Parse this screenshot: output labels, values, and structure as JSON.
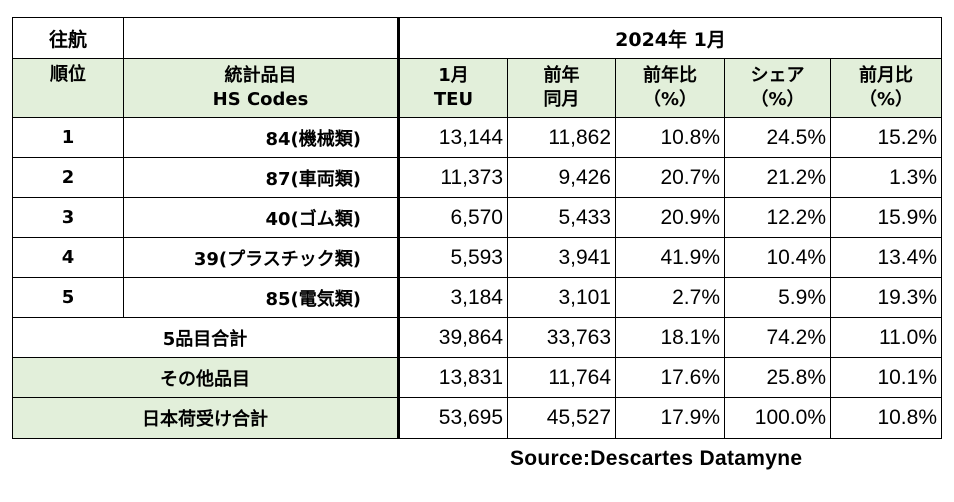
{
  "corner_label": "往航",
  "period_label": "2024年 1月",
  "headers": {
    "rank": "順位",
    "item_line1": "統計品目",
    "item_line2": "HS Codes",
    "teu_line1": "1月",
    "teu_line2": "TEU",
    "prev_line1": "前年",
    "prev_line2": "同月",
    "yoy_line1": "前年比",
    "yoy_line2": "（%）",
    "share_line1": "シェア",
    "share_line2": "（%）",
    "mom_line1": "前月比",
    "mom_line2": "（%）"
  },
  "rows": [
    {
      "rank": "1",
      "item": "84(機械類)",
      "teu": "13,144",
      "prev": "11,862",
      "yoy": "10.8%",
      "share": "24.5%",
      "mom": "15.2%"
    },
    {
      "rank": "2",
      "item": "87(車両類)",
      "teu": "11,373",
      "prev": "9,426",
      "yoy": "20.7%",
      "share": "21.2%",
      "mom": "1.3%"
    },
    {
      "rank": "3",
      "item": "40(ゴム類)",
      "teu": "6,570",
      "prev": "5,433",
      "yoy": "20.9%",
      "share": "12.2%",
      "mom": "15.9%"
    },
    {
      "rank": "4",
      "item": "39(プラスチック類)",
      "teu": "5,593",
      "prev": "3,941",
      "yoy": "41.9%",
      "share": "10.4%",
      "mom": "13.4%"
    },
    {
      "rank": "5",
      "item": "85(電気類)",
      "teu": "3,184",
      "prev": "3,101",
      "yoy": "2.7%",
      "share": "5.9%",
      "mom": "19.3%"
    }
  ],
  "totals": [
    {
      "label": "5品目合計",
      "teu": "39,864",
      "prev": "33,763",
      "yoy": "18.1%",
      "share": "74.2%",
      "mom": "11.0%"
    },
    {
      "label": "その他品目",
      "teu": "13,831",
      "prev": "11,764",
      "yoy": "17.6%",
      "share": "25.8%",
      "mom": "10.1%"
    },
    {
      "label": "日本荷受け合計",
      "teu": "53,695",
      "prev": "45,527",
      "yoy": "17.9%",
      "share": "100.0%",
      "mom": "10.8%"
    }
  ],
  "source": "Source:Descartes  Datamyne",
  "colors": {
    "header_bg": "#e2efda",
    "border": "#000000"
  }
}
